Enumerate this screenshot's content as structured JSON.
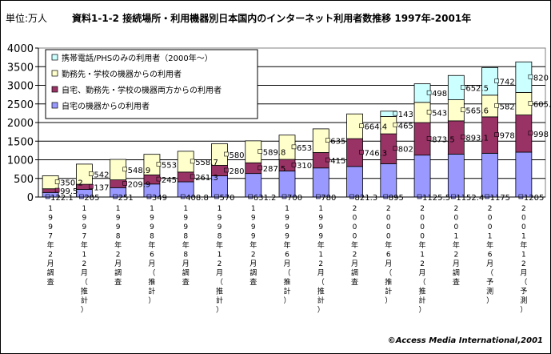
{
  "header": {
    "unit": "単位:万人",
    "title": "資料1-1-2  接続場所・利用機器別日本国内のインターネット利用者数推移  1997年-2001年"
  },
  "footer": {
    "copyright": "©Access Media International,2001"
  },
  "chart_data": {
    "type": "bar",
    "stacked": true,
    "ylim": [
      0,
      4000
    ],
    "yticks": [
      0,
      500,
      1000,
      1500,
      2000,
      2500,
      3000,
      3500,
      4000
    ],
    "grid": true,
    "legend_position": "top-left",
    "categories": [
      "1997年2月調査",
      "1997年12月（推計）",
      "1998年2月調査",
      "1998年6月（推計）",
      "1998年8月調査",
      "1998年12月（推計）",
      "1999年2月調査",
      "1999年6月（推計）",
      "1999年12月（推計）",
      "2000年2月調査",
      "2000年6月（推計）",
      "2000年12月（推計）",
      "2001年2月調査",
      "2001年6月（予測）",
      "2001年12月（予測）"
    ],
    "series": [
      {
        "name": "自宅の機器からの利用者",
        "color": "#9999ff",
        "values": [
          122.1,
          205,
          251,
          349,
          408.8,
          570,
          631.2,
          700,
          780,
          821.3,
          895,
          1125.5,
          1152.4,
          1175,
          1205
        ]
      },
      {
        "name": "自宅、勤務先・学校の機器両方からの利用者",
        "color": "#993366",
        "values": [
          99.5,
          137,
          209.9,
          245,
          261.3,
          280,
          287.5,
          310,
          415,
          746.3,
          802,
          873.5,
          893.1,
          978,
          998
        ]
      },
      {
        "name": "勤務先・学校の機器からの利用者",
        "color": "#ffffcc",
        "values": [
          350.2,
          542,
          548.9,
          553,
          558.7,
          580,
          589.8,
          653,
          635,
          664.4,
          465,
          543,
          565.6,
          582,
          605.9
        ]
      },
      {
        "name": "携帯電話/PHSのみの利用者（2000年～）",
        "color": "#ccffff",
        "values": [
          0,
          0,
          0,
          0,
          0,
          0,
          0,
          0,
          0,
          0,
          143,
          498,
          652.5,
          742,
          820
        ]
      }
    ],
    "data_labels": [
      [
        "122.1",
        "205",
        "251",
        "349",
        "408.8",
        "570",
        "631.2",
        "700",
        "780",
        "821.3",
        "895",
        "1125.5",
        "1152.4",
        "1175",
        "1205"
      ],
      [
        "99.5",
        "137",
        "209.9",
        "245",
        "261.3",
        "280",
        "287.5",
        "310",
        "415",
        "746.3",
        "802",
        "873.5",
        "893.1",
        "978",
        "998"
      ],
      [
        "350.2",
        "542",
        "548.9",
        "553",
        "558.7",
        "580",
        "589.8",
        "653",
        "635",
        "664.4",
        "465",
        "543",
        "565.6",
        "582",
        "605.9"
      ],
      [
        "",
        "",
        "",
        "",
        "",
        "",
        "",
        "",
        "",
        "",
        "143",
        "498",
        "652.5",
        "742",
        "820"
      ]
    ]
  }
}
